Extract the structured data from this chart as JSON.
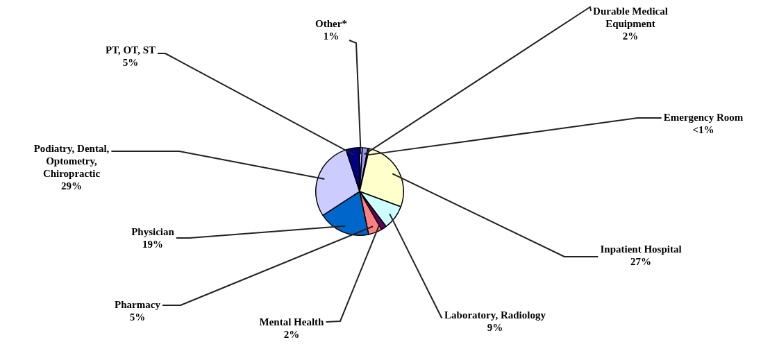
{
  "chart_data": {
    "type": "pie",
    "categories": [
      "Other*",
      "Durable Medical Equipment",
      "Emergency Room",
      "Inpatient Hospital",
      "Laboratory, Radiology",
      "Mental Health",
      "Pharmacy",
      "Physician",
      "Podiatry, Dental, Optometry, Chiropractic",
      "PT, OT, ST"
    ],
    "values": [
      1,
      2,
      0.5,
      27,
      9,
      2,
      5,
      19,
      29,
      5
    ],
    "value_labels": [
      "1%",
      "2%",
      "<1%",
      "27%",
      "9%",
      "2%",
      "5%",
      "19%",
      "29%",
      "5%"
    ],
    "colors": [
      "#ffffff",
      "#9999ff",
      "#993366",
      "#ffffcc",
      "#ccffff",
      "#660066",
      "#ff8080",
      "#0066cc",
      "#ccccff",
      "#000080"
    ],
    "legend": false
  }
}
